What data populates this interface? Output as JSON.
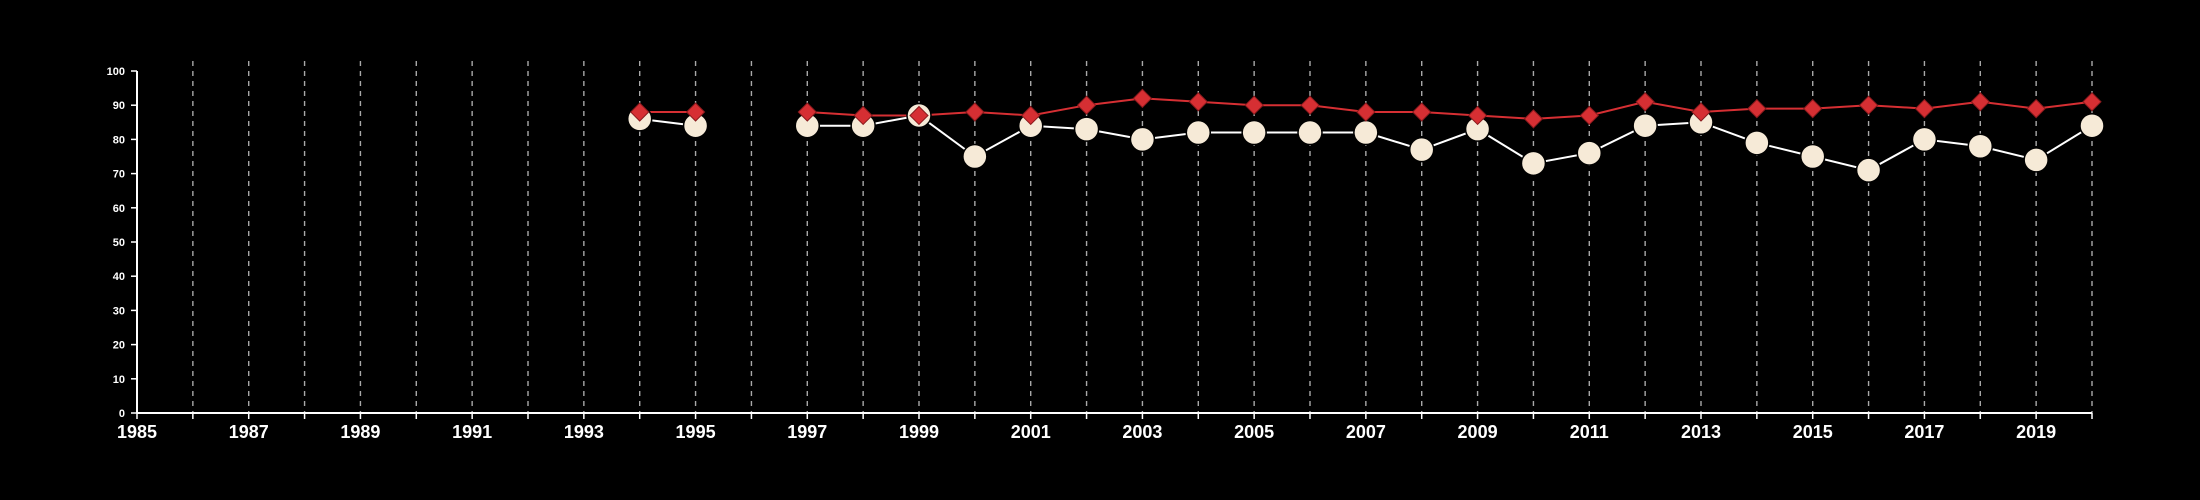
{
  "chart_data": {
    "type": "line",
    "title": "",
    "xlabel": "",
    "ylabel": "",
    "xlim": [
      1985,
      2020
    ],
    "ylim": [
      0,
      100
    ],
    "grid": "vertical-dashed",
    "background": "#000000",
    "x_ticks": [
      1985,
      1987,
      1989,
      1991,
      1993,
      1995,
      1997,
      1999,
      2001,
      2003,
      2005,
      2007,
      2009,
      2011,
      2013,
      2015,
      2017,
      2019
    ],
    "y_ticks": [
      0,
      10,
      20,
      30,
      40,
      50,
      60,
      70,
      80,
      90,
      100
    ],
    "series": [
      {
        "marker": "diamond",
        "color": "#d62f33",
        "points": [
          {
            "x": 1994,
            "y": 88
          },
          {
            "x": 1995,
            "y": 88
          },
          {
            "x": 1997,
            "y": 88
          },
          {
            "x": 1998,
            "y": 87
          },
          {
            "x": 1999,
            "y": 87
          },
          {
            "x": 2000,
            "y": 88
          },
          {
            "x": 2001,
            "y": 87
          },
          {
            "x": 2002,
            "y": 90
          },
          {
            "x": 2003,
            "y": 92
          },
          {
            "x": 2004,
            "y": 91
          },
          {
            "x": 2005,
            "y": 90
          },
          {
            "x": 2006,
            "y": 90
          },
          {
            "x": 2007,
            "y": 88
          },
          {
            "x": 2008,
            "y": 88
          },
          {
            "x": 2009,
            "y": 87
          },
          {
            "x": 2010,
            "y": 86
          },
          {
            "x": 2011,
            "y": 87
          },
          {
            "x": 2012,
            "y": 91
          },
          {
            "x": 2013,
            "y": 88
          },
          {
            "x": 2014,
            "y": 89
          },
          {
            "x": 2015,
            "y": 89
          },
          {
            "x": 2016,
            "y": 90
          },
          {
            "x": 2017,
            "y": 89
          },
          {
            "x": 2018,
            "y": 91
          },
          {
            "x": 2019,
            "y": 89
          },
          {
            "x": 2020,
            "y": 91
          }
        ]
      },
      {
        "marker": "circle",
        "color": "#f6ead7",
        "line_color": "#ffffff",
        "points": [
          {
            "x": 1994,
            "y": 86
          },
          {
            "x": 1995,
            "y": 84
          },
          {
            "x": 1997,
            "y": 84
          },
          {
            "x": 1998,
            "y": 84
          },
          {
            "x": 1999,
            "y": 87
          },
          {
            "x": 2000,
            "y": 75
          },
          {
            "x": 2001,
            "y": 84
          },
          {
            "x": 2002,
            "y": 83
          },
          {
            "x": 2003,
            "y": 80
          },
          {
            "x": 2004,
            "y": 82
          },
          {
            "x": 2005,
            "y": 82
          },
          {
            "x": 2006,
            "y": 82
          },
          {
            "x": 2007,
            "y": 82
          },
          {
            "x": 2008,
            "y": 77
          },
          {
            "x": 2009,
            "y": 83
          },
          {
            "x": 2010,
            "y": 73
          },
          {
            "x": 2011,
            "y": 76
          },
          {
            "x": 2012,
            "y": 84
          },
          {
            "x": 2013,
            "y": 85
          },
          {
            "x": 2014,
            "y": 79
          },
          {
            "x": 2015,
            "y": 75
          },
          {
            "x": 2016,
            "y": 71
          },
          {
            "x": 2017,
            "y": 80
          },
          {
            "x": 2018,
            "y": 78
          },
          {
            "x": 2019,
            "y": 74
          },
          {
            "x": 2020,
            "y": 84
          }
        ]
      }
    ]
  }
}
